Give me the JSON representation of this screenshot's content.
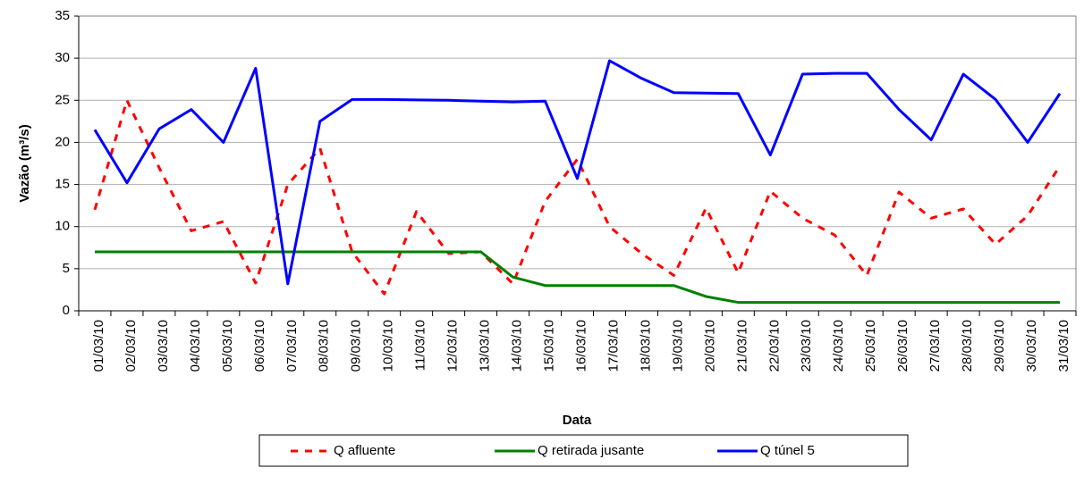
{
  "chart_data": {
    "type": "line",
    "y_label": "Vazão (m³/s)",
    "x_label": "Data",
    "categories": [
      "01/03/10",
      "02/03/10",
      "03/03/10",
      "04/03/10",
      "05/03/10",
      "06/03/10",
      "07/03/10",
      "08/03/10",
      "09/03/10",
      "10/03/10",
      "11/03/10",
      "12/03/10",
      "13/03/10",
      "14/03/10",
      "15/03/10",
      "16/03/10",
      "17/03/10",
      "18/03/10",
      "19/03/10",
      "20/03/10",
      "21/03/10",
      "22/03/10",
      "23/03/10",
      "24/03/10",
      "25/03/10",
      "26/03/10",
      "27/03/10",
      "28/03/10",
      "29/03/10",
      "30/03/10",
      "31/03/10"
    ],
    "series": [
      {
        "name": "Q afluente",
        "color": "#ff0000",
        "dashed": true,
        "values": [
          12,
          25,
          17,
          9.5,
          10.6,
          3.3,
          15,
          19.3,
          7,
          2,
          11.8,
          6.8,
          7,
          3.2,
          13,
          18,
          10,
          6.8,
          4.2,
          12.2,
          4.5,
          14.2,
          11,
          9,
          4.2,
          14.1,
          11,
          12.1,
          7.9,
          11.3,
          17.2
        ]
      },
      {
        "name": "Q retirada jusante",
        "color": "#008000",
        "dashed": false,
        "values": [
          7,
          7,
          7,
          7,
          7,
          7,
          7,
          7,
          7,
          7,
          7,
          7,
          7,
          4,
          3,
          3,
          3,
          3,
          3,
          1.7,
          1,
          1,
          1,
          1,
          1,
          1,
          1,
          1,
          1,
          1,
          1
        ]
      },
      {
        "name": "Q túnel 5",
        "color": "#0000ff",
        "dashed": false,
        "values": [
          21.5,
          15.2,
          21.6,
          23.9,
          20,
          28.8,
          3.2,
          22.5,
          25.1,
          25.1,
          25.05,
          25,
          24.9,
          24.8,
          24.9,
          15.7,
          29.7,
          27.6,
          25.9,
          25.85,
          25.8,
          18.5,
          28.1,
          28.2,
          28.2,
          23.9,
          20.3,
          28.1,
          25.1,
          20,
          25.8
        ]
      }
    ],
    "ylim": [
      0,
      35
    ],
    "yticks": [
      0,
      5,
      10,
      15,
      20,
      25,
      30,
      35
    ],
    "grid": true,
    "legend": "bottom"
  }
}
